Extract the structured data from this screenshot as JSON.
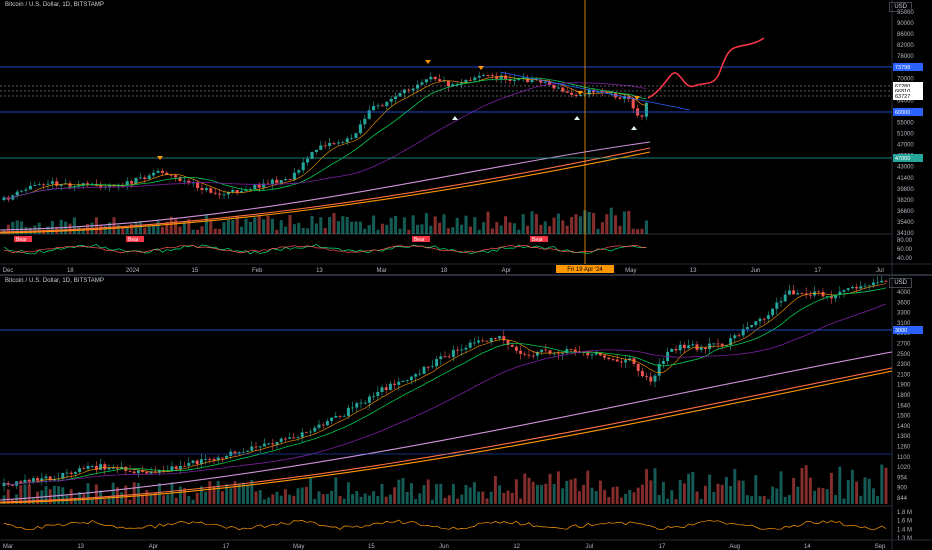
{
  "top": {
    "title": "Bitcoin / U.S. Dollar, 1D, BITSTAMP",
    "currency": "USD",
    "y_ticks": [
      "95000",
      "90000",
      "86000",
      "82000",
      "78000",
      "74000",
      "70000",
      "67000",
      "64000",
      "58000",
      "55000",
      "51000",
      "47000",
      "45000",
      "43000",
      "41400",
      "39800",
      "38200",
      "36600",
      "35400",
      "34100"
    ],
    "price_labels": [
      {
        "text": "73798",
        "color": "#2962ff"
      },
      {
        "text": "67280",
        "color": "#ffffff"
      },
      {
        "text": "66810",
        "color": "#ffffff"
      },
      {
        "text": "63727",
        "color": "#ffffff"
      },
      {
        "text": "60000",
        "color": "#2962ff"
      },
      {
        "text": "47000",
        "color": "#26a69a"
      }
    ],
    "osc_ticks": [
      "80.00",
      "60.00",
      "40.00"
    ],
    "x_ticks": [
      "Dec",
      "18",
      "2024",
      "15",
      "Feb",
      "13",
      "Mar",
      "18",
      "Apr",
      "13",
      "May",
      "13",
      "Jun",
      "17",
      "Jul"
    ],
    "cursor_date": "Fri 19 Apr '24",
    "signals": [
      "Bear",
      "Bear",
      "Bear",
      "Bear"
    ]
  },
  "bottom": {
    "title": "Bitcoin / U.S. Dollar, 1D, BITSTAMP",
    "currency": "USD",
    "y_ticks": [
      "4000",
      "3600",
      "3300",
      "3100",
      "2900",
      "2700",
      "2500",
      "2300",
      "2100",
      "1900",
      "1800",
      "1640",
      "1500",
      "1400",
      "1300",
      "1260",
      "1100",
      "1020",
      "954",
      "900",
      "844"
    ],
    "price_labels": [
      {
        "text": "3000",
        "color": "#2962ff"
      }
    ],
    "osc_ticks": [
      "1.8 M",
      "1.6 M",
      "1.4 M",
      "1.3 M"
    ],
    "x_ticks": [
      "Mar",
      "13",
      "Apr",
      "17",
      "May",
      "15",
      "Jun",
      "12",
      "Jul",
      "17",
      "Aug",
      "14",
      "Sep"
    ]
  },
  "colors": {
    "up": "#26a69a",
    "down": "#ef5350",
    "cursor": "#ff9800",
    "projection": "#f23645"
  }
}
